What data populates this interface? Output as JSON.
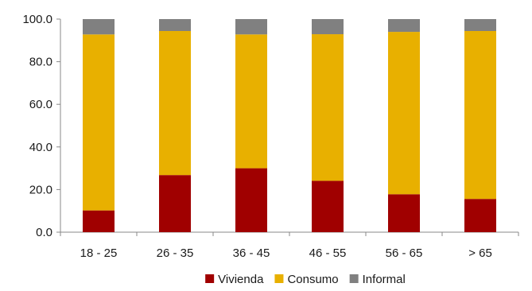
{
  "chart_data": {
    "type": "bar",
    "stacked": true,
    "title": "",
    "categories": [
      "18 - 25",
      "26 - 35",
      "36 - 45",
      "46 - 55",
      "56 - 65",
      "> 65"
    ],
    "series": [
      {
        "name": "Vivienda",
        "color": "#A00000",
        "values": [
          10.2,
          26.8,
          30.0,
          24.1,
          17.8,
          15.6
        ]
      },
      {
        "name": "Consumo",
        "color": "#E8B000",
        "values": [
          82.6,
          67.6,
          62.8,
          68.8,
          76.2,
          78.8
        ]
      },
      {
        "name": "Informal",
        "color": "#808080",
        "values": [
          7.2,
          5.6,
          7.2,
          7.1,
          6.0,
          5.6
        ]
      }
    ],
    "y_ticks": [
      "0.0",
      "20.0",
      "40.0",
      "60.0",
      "80.0",
      "100.0"
    ],
    "ylim": [
      0,
      100
    ],
    "xlabel": "",
    "ylabel": "",
    "grid": false,
    "legend_position": "bottom"
  }
}
